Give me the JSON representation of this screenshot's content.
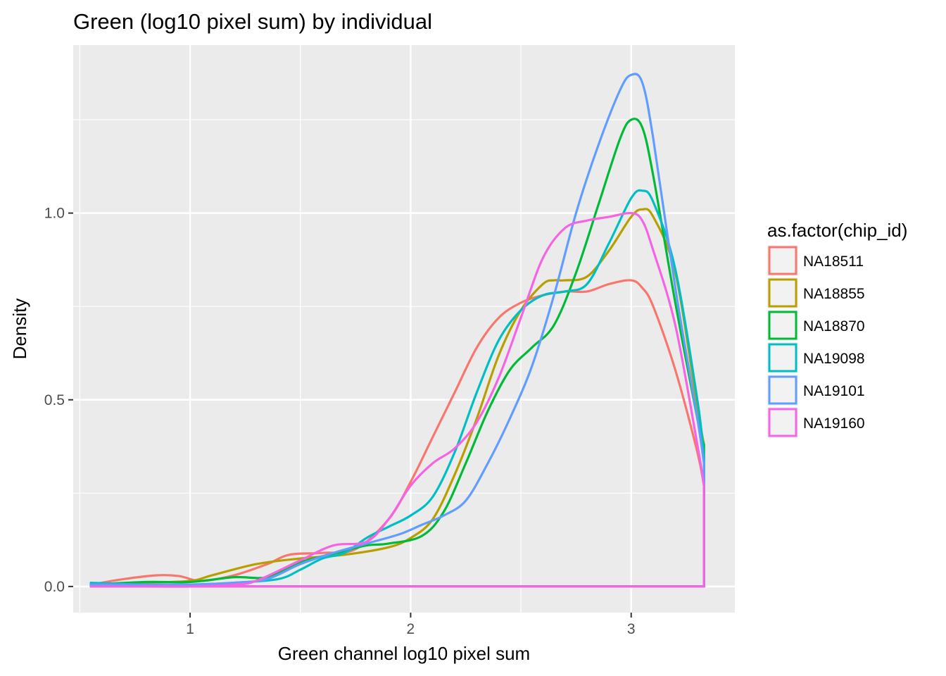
{
  "chart_data": {
    "type": "line",
    "title": "Green (log10 pixel sum) by individual",
    "xlabel": "Green channel log10 pixel sum",
    "ylabel": "Density",
    "xlim": [
      0.47,
      3.47
    ],
    "ylim": [
      -0.07,
      1.45
    ],
    "x_ticks": [
      1,
      2,
      3
    ],
    "x_tick_labels": [
      "1",
      "2",
      "3"
    ],
    "y_ticks": [
      0.0,
      0.5,
      1.0
    ],
    "y_tick_labels": [
      "0.0",
      "0.5",
      "1.0"
    ],
    "legend_title": "as.factor(chip_id)",
    "legend_position": "right",
    "grid": true,
    "series": [
      {
        "name": "NA18511",
        "color": "#F8766D",
        "x": [
          0.55,
          0.7,
          0.85,
          0.95,
          1.05,
          1.2,
          1.35,
          1.45,
          1.6,
          1.75,
          1.9,
          2.0,
          2.1,
          2.2,
          2.3,
          2.4,
          2.5,
          2.6,
          2.7,
          2.8,
          2.9,
          3.0,
          3.05,
          3.1,
          3.2,
          3.3,
          3.33
        ],
        "y": [
          0.005,
          0.02,
          0.03,
          0.028,
          0.015,
          0.03,
          0.06,
          0.085,
          0.09,
          0.1,
          0.18,
          0.28,
          0.4,
          0.52,
          0.64,
          0.72,
          0.76,
          0.78,
          0.79,
          0.79,
          0.81,
          0.82,
          0.8,
          0.75,
          0.58,
          0.36,
          0.27
        ]
      },
      {
        "name": "NA18855",
        "color": "#B79F00",
        "x": [
          0.55,
          0.8,
          1.0,
          1.1,
          1.3,
          1.5,
          1.7,
          1.9,
          2.0,
          2.1,
          2.2,
          2.3,
          2.4,
          2.5,
          2.6,
          2.65,
          2.7,
          2.8,
          2.9,
          3.0,
          3.05,
          3.1,
          3.2,
          3.3,
          3.33
        ],
        "y": [
          0.005,
          0.01,
          0.015,
          0.03,
          0.06,
          0.075,
          0.085,
          0.105,
          0.13,
          0.18,
          0.3,
          0.45,
          0.62,
          0.74,
          0.81,
          0.82,
          0.82,
          0.83,
          0.9,
          0.99,
          1.01,
          0.99,
          0.84,
          0.48,
          0.38
        ]
      },
      {
        "name": "NA18870",
        "color": "#00BA38",
        "x": [
          0.55,
          0.8,
          1.0,
          1.2,
          1.35,
          1.5,
          1.7,
          1.8,
          1.9,
          2.05,
          2.15,
          2.25,
          2.35,
          2.45,
          2.55,
          2.65,
          2.75,
          2.85,
          2.95,
          3.0,
          3.05,
          3.1,
          3.2,
          3.3,
          3.33
        ],
        "y": [
          0.005,
          0.012,
          0.012,
          0.025,
          0.025,
          0.065,
          0.095,
          0.11,
          0.115,
          0.135,
          0.2,
          0.33,
          0.47,
          0.58,
          0.64,
          0.7,
          0.84,
          1.02,
          1.2,
          1.25,
          1.23,
          1.1,
          0.76,
          0.45,
          0.38
        ]
      },
      {
        "name": "NA19098",
        "color": "#00BFC4",
        "x": [
          0.55,
          0.8,
          1.0,
          1.2,
          1.4,
          1.5,
          1.6,
          1.7,
          1.8,
          1.9,
          2.0,
          2.1,
          2.2,
          2.3,
          2.4,
          2.5,
          2.6,
          2.7,
          2.8,
          2.9,
          3.0,
          3.05,
          3.1,
          3.2,
          3.3,
          3.33
        ],
        "y": [
          0.01,
          0.005,
          0.005,
          0.01,
          0.02,
          0.045,
          0.075,
          0.09,
          0.13,
          0.16,
          0.19,
          0.24,
          0.36,
          0.52,
          0.66,
          0.74,
          0.78,
          0.79,
          0.81,
          0.92,
          1.04,
          1.06,
          1.03,
          0.85,
          0.5,
          0.35
        ]
      },
      {
        "name": "NA19101",
        "color": "#619CFF",
        "x": [
          0.55,
          0.8,
          1.0,
          1.2,
          1.35,
          1.5,
          1.65,
          1.8,
          1.95,
          2.05,
          2.15,
          2.25,
          2.35,
          2.45,
          2.55,
          2.65,
          2.75,
          2.85,
          2.95,
          3.0,
          3.05,
          3.1,
          3.2,
          3.3,
          3.33
        ],
        "y": [
          0.005,
          0.005,
          0.005,
          0.01,
          0.02,
          0.06,
          0.09,
          0.115,
          0.14,
          0.165,
          0.19,
          0.23,
          0.33,
          0.45,
          0.59,
          0.78,
          1.0,
          1.18,
          1.33,
          1.37,
          1.35,
          1.2,
          0.8,
          0.45,
          0.33
        ]
      },
      {
        "name": "NA19160",
        "color": "#F564E3",
        "x": [
          0.55,
          0.8,
          1.0,
          1.2,
          1.3,
          1.5,
          1.65,
          1.8,
          1.9,
          2.0,
          2.1,
          2.2,
          2.3,
          2.4,
          2.5,
          2.6,
          2.7,
          2.8,
          2.9,
          3.0,
          3.05,
          3.1,
          3.2,
          3.3,
          3.33
        ],
        "y": [
          0.0,
          0.0,
          0.0,
          0.005,
          0.015,
          0.07,
          0.11,
          0.12,
          0.18,
          0.27,
          0.33,
          0.37,
          0.44,
          0.56,
          0.72,
          0.88,
          0.96,
          0.98,
          0.99,
          1.0,
          0.98,
          0.9,
          0.7,
          0.38,
          0.27
        ]
      }
    ]
  }
}
